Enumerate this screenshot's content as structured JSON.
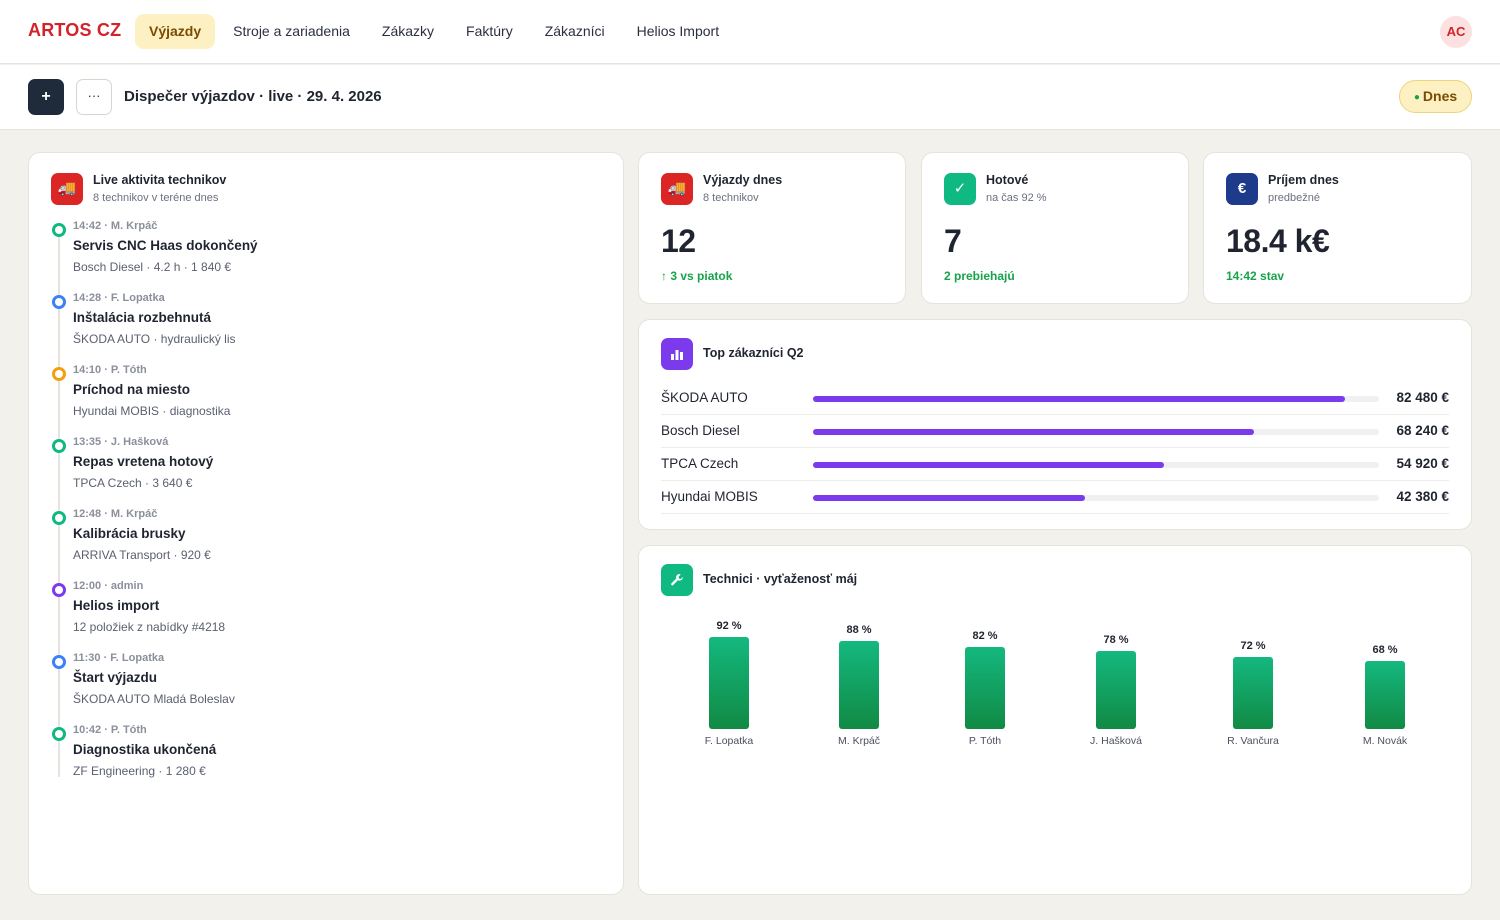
{
  "nav": {
    "brand": "ARTOS CZ",
    "links": [
      "Výjazdy",
      "Stroje a zariadenia",
      "Zákazky",
      "Faktúry",
      "Zákazníci",
      "Helios Import"
    ],
    "active_index": 0,
    "avatar": "AC"
  },
  "toolbar": {
    "add_label": "+",
    "more_label": "···",
    "title": "Dispečer výjazdov · live · 29. 4. 2026",
    "today_label": "Dnes"
  },
  "activity": {
    "title": "Live aktivita technikov",
    "subtitle": "8 technikov v teréne dnes",
    "icon": "truck-icon",
    "items": [
      {
        "meta": "14:42 · M. Krpáč",
        "title": "Servis CNC Haas dokončený",
        "detail": "Bosch Diesel · 4.2 h · 1 840 €",
        "color": "#10b981"
      },
      {
        "meta": "14:28 · F. Lopatka",
        "title": "Inštalácia rozbehnutá",
        "detail": "ŠKODA AUTO · hydraulický lis",
        "color": "#3b82f6"
      },
      {
        "meta": "14:10 · P. Tóth",
        "title": "Príchod na miesto",
        "detail": "Hyundai MOBIS · diagnostika",
        "color": "#f59e0b"
      },
      {
        "meta": "13:35 · J. Hašková",
        "title": "Repas vretena hotový",
        "detail": "TPCA Czech · 3 640 €",
        "color": "#10b981"
      },
      {
        "meta": "12:48 · M. Krpáč",
        "title": "Kalibrácia brusky",
        "detail": "ARRIVA Transport · 920 €",
        "color": "#10b981"
      },
      {
        "meta": "12:00 · admin",
        "title": "Helios import",
        "detail": "12 položiek z nabídky #4218",
        "color": "#7c3aed"
      },
      {
        "meta": "11:30 · F. Lopatka",
        "title": "Štart výjazdu",
        "detail": "ŠKODA AUTO Mladá Boleslav",
        "color": "#3b82f6"
      },
      {
        "meta": "10:42 · P. Tóth",
        "title": "Diagnostika ukončená",
        "detail": "ZF Engineering · 1 280 €",
        "color": "#10b981"
      }
    ]
  },
  "stats": [
    {
      "title": "Výjazdy dnes",
      "subtitle": "8 technikov",
      "value": "12",
      "foot": "↑ 3 vs piatok",
      "icon": "truck-icon",
      "icon_color": "#dc2626",
      "icon_glyph": "🚚"
    },
    {
      "title": "Hotové",
      "subtitle": "na čas 92 %",
      "value": "7",
      "foot": "2 prebiehajú",
      "icon": "check-icon",
      "icon_color": "#10b981",
      "icon_glyph": "✓"
    },
    {
      "title": "Príjem dnes",
      "subtitle": "predbežné",
      "value": "18.4 k€",
      "foot": "14:42 stav",
      "icon": "euro-icon",
      "icon_color": "#1e3a8a",
      "icon_glyph": "€"
    }
  ],
  "customers": {
    "title": "Top zákazníci Q2",
    "icon": "bar-chart-icon",
    "bar_color": "#7c3aed",
    "rows": [
      {
        "name": "ŠKODA AUTO",
        "value_label": "82 480 €",
        "value": 82480,
        "share": 0.94
      },
      {
        "name": "Bosch Diesel",
        "value_label": "68 240 €",
        "value": 68240,
        "share": 0.78
      },
      {
        "name": "TPCA Czech",
        "value_label": "54 920 €",
        "value": 54920,
        "share": 0.62
      },
      {
        "name": "Hyundai MOBIS",
        "value_label": "42 380 €",
        "value": 42380,
        "share": 0.48
      }
    ]
  },
  "chart_data": {
    "type": "bar",
    "title": "Technici · vyťaženosť máj",
    "categories": [
      "F. Lopatka",
      "M. Krpáč",
      "P. Tóth",
      "J. Hašková",
      "R. Vančura",
      "M. Novák"
    ],
    "values": [
      92,
      88,
      82,
      78,
      72,
      68
    ],
    "value_labels": [
      "92 %",
      "88 %",
      "82 %",
      "78 %",
      "72 %",
      "68 %"
    ],
    "ylim": [
      0,
      100
    ],
    "grid": false,
    "bar_color": "#10b981",
    "icon": "wrench-icon"
  }
}
